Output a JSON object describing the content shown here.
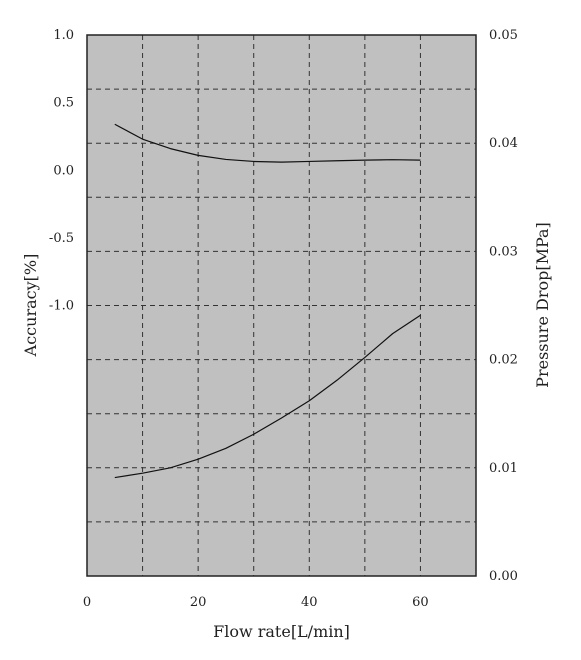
{
  "chart_data": {
    "type": "line",
    "xlabel": "Flow rate[L/min]",
    "ylabel_left": "Accuracy[%]",
    "ylabel_right": "Pressure Drop[MPa]",
    "xlim": [
      0,
      70
    ],
    "ylim_right": [
      0,
      0.05
    ],
    "ylim_left_display": [
      -3.0,
      1.0
    ],
    "x_ticks": [
      {
        "value": 0,
        "label": "0"
      },
      {
        "value": 20,
        "label": "20"
      },
      {
        "value": 40,
        "label": "40"
      },
      {
        "value": 60,
        "label": "60"
      }
    ],
    "y_left_ticks": [
      {
        "value": 1.0,
        "label": "1.0"
      },
      {
        "value": 0.5,
        "label": "0.5"
      },
      {
        "value": 0.0,
        "label": "0.0"
      },
      {
        "value": -0.5,
        "label": "-0.5"
      },
      {
        "value": -1.0,
        "label": "-1.0"
      }
    ],
    "y_right_ticks": [
      {
        "value": 0.05,
        "label": "0.05"
      },
      {
        "value": 0.04,
        "label": "0.04"
      },
      {
        "value": 0.03,
        "label": "0.03"
      },
      {
        "value": 0.02,
        "label": "0.02"
      },
      {
        "value": 0.01,
        "label": "0.01"
      },
      {
        "value": 0.0,
        "label": "0.00"
      }
    ],
    "x_grid": [
      10,
      20,
      30,
      40,
      50,
      60
    ],
    "y_right_grid": [
      0.005,
      0.01,
      0.015,
      0.02,
      0.025,
      0.03,
      0.035,
      0.04,
      0.045
    ],
    "grid": true,
    "grid_style": "dashed",
    "plot_background": "#c0c0c0",
    "series": [
      {
        "axis": "left",
        "x": [
          5,
          10,
          15,
          20,
          25,
          30,
          35,
          40,
          45,
          50,
          55,
          60
        ],
        "y": [
          0.34,
          0.23,
          0.16,
          0.11,
          0.08,
          0.065,
          0.06,
          0.065,
          0.07,
          0.075,
          0.078,
          0.075
        ]
      },
      {
        "axis": "right",
        "x": [
          5,
          10,
          15,
          20,
          25,
          30,
          35,
          40,
          45,
          50,
          55,
          60
        ],
        "y": [
          0.0091,
          0.0095,
          0.01,
          0.0108,
          0.0118,
          0.0131,
          0.0146,
          0.0162,
          0.0181,
          0.0202,
          0.0224,
          0.0241
        ]
      }
    ]
  }
}
